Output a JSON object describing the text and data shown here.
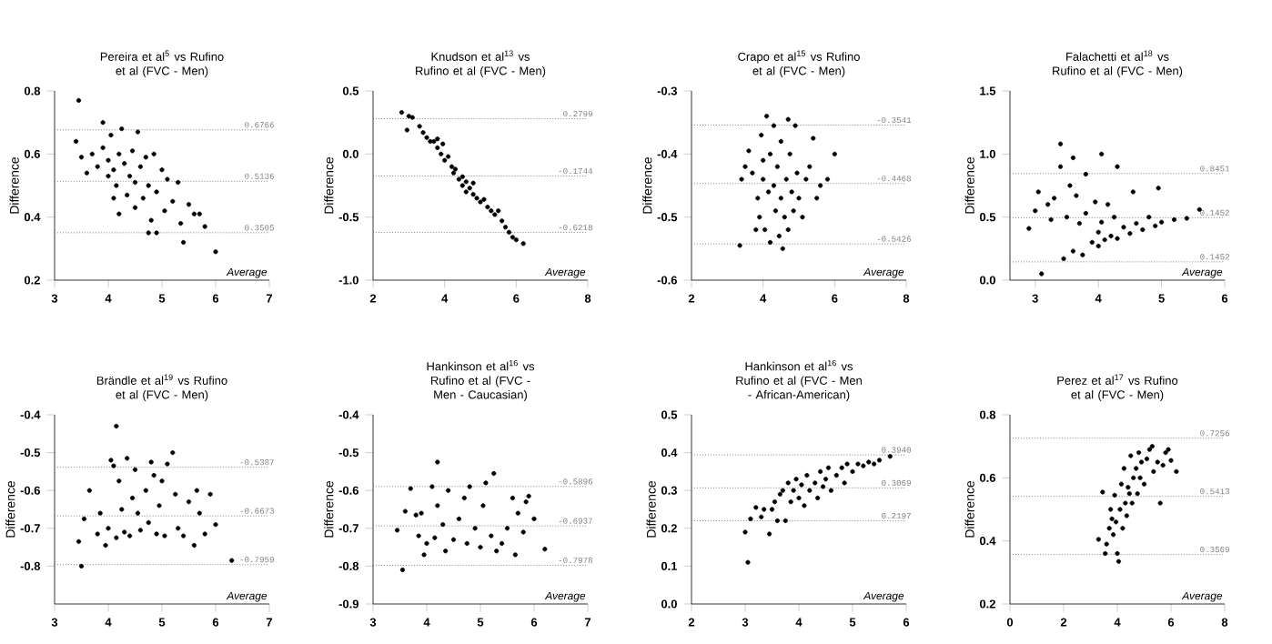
{
  "chart_data": [
    {
      "type": "scatter",
      "title": "Pereira et al$^{5}$ vs Rufino et al (FVC - Men)",
      "xlabel": "Average",
      "ylabel": "Difference",
      "marker": "circle",
      "xlim": [
        3,
        7
      ],
      "xticks": [
        3,
        4,
        5,
        6,
        7
      ],
      "ylim": [
        0.2,
        0.8
      ],
      "yticks": [
        0.2,
        0.4,
        0.6,
        0.8
      ],
      "series": [
        {
          "color": "#000000",
          "x": [
            3.45,
            3.4,
            3.5,
            3.6,
            3.7,
            3.8,
            3.9,
            3.9,
            4.0,
            4.0,
            4.05,
            4.1,
            4.1,
            4.15,
            4.2,
            4.2,
            4.25,
            4.3,
            4.35,
            4.4,
            4.45,
            4.5,
            4.5,
            4.55,
            4.6,
            4.65,
            4.7,
            4.75,
            4.75,
            4.8,
            4.85,
            4.9,
            4.9,
            5.0,
            5.05,
            5.1,
            5.2,
            5.3,
            5.35,
            5.4,
            5.5,
            5.6,
            5.7,
            5.8,
            6.0
          ],
          "values": [
            0.77,
            0.64,
            0.59,
            0.54,
            0.6,
            0.56,
            0.7,
            0.62,
            0.58,
            0.53,
            0.66,
            0.46,
            0.55,
            0.5,
            0.41,
            0.6,
            0.68,
            0.57,
            0.47,
            0.53,
            0.61,
            0.51,
            0.43,
            0.67,
            0.56,
            0.46,
            0.59,
            0.35,
            0.5,
            0.39,
            0.6,
            0.35,
            0.48,
            0.55,
            0.42,
            0.52,
            0.45,
            0.51,
            0.38,
            0.32,
            0.44,
            0.41,
            0.41,
            0.37,
            0.29
          ]
        }
      ],
      "ref_lines": [
        {
          "axis": "y",
          "value": 0.6766,
          "label": "0.6766",
          "color": "#808080",
          "line_style": "dotted"
        },
        {
          "axis": "y",
          "value": 0.5136,
          "label": "0.5136",
          "color": "#808080",
          "line_style": "dotted"
        },
        {
          "axis": "y",
          "value": 0.3505,
          "label": "0.3505",
          "color": "#808080",
          "line_style": "dotted"
        }
      ]
    },
    {
      "type": "scatter",
      "title": "Knudson et al$^{13}$ vs Rufino et al (FVC - Men)",
      "xlabel": "Average",
      "ylabel": "Difference",
      "marker": "circle",
      "xlim": [
        2,
        8
      ],
      "xticks": [
        2,
        4,
        6,
        8
      ],
      "ylim": [
        -1.0,
        0.5
      ],
      "yticks": [
        {
          "value": -1.0,
          "label": "-1.0"
        },
        -0.5,
        {
          "value": 0,
          "label": "0.0"
        },
        0.5
      ],
      "series": [
        {
          "color": "#000000",
          "x": [
            2.8,
            2.95,
            3.0,
            3.1,
            3.3,
            3.4,
            3.5,
            3.6,
            3.7,
            3.8,
            3.8,
            3.9,
            3.95,
            4.0,
            4.1,
            4.2,
            4.25,
            4.3,
            4.4,
            4.5,
            4.5,
            4.6,
            4.6,
            4.7,
            4.8,
            4.8,
            4.9,
            5.0,
            5.1,
            5.2,
            5.3,
            5.4,
            5.5,
            5.6,
            5.7,
            5.8,
            5.9,
            6.0,
            6.2
          ],
          "values": [
            0.33,
            0.19,
            0.3,
            0.29,
            0.22,
            0.17,
            0.13,
            0.1,
            0.1,
            0.05,
            0.12,
            0.0,
            0.08,
            -0.05,
            -0.02,
            -0.1,
            -0.15,
            -0.12,
            -0.2,
            -0.18,
            -0.25,
            -0.22,
            -0.3,
            -0.27,
            -0.32,
            -0.23,
            -0.35,
            -0.38,
            -0.36,
            -0.42,
            -0.45,
            -0.48,
            -0.45,
            -0.53,
            -0.58,
            -0.62,
            -0.66,
            -0.68,
            -0.71
          ]
        }
      ],
      "ref_lines": [
        {
          "axis": "y",
          "value": 0.2799,
          "label": "0.2799",
          "color": "#808080",
          "line_style": "dotted"
        },
        {
          "axis": "y",
          "value": -0.1744,
          "label": "-0.1744",
          "color": "#808080",
          "line_style": "dotted"
        },
        {
          "axis": "y",
          "value": -0.6218,
          "label": "-0.6218",
          "color": "#808080",
          "line_style": "dotted"
        }
      ]
    },
    {
      "type": "scatter",
      "title": "Crapo et al$^{15}$ vs Rufino et al (FVC - Men)",
      "xlabel": "Average",
      "ylabel": "Difference",
      "marker": "circle",
      "xlim": [
        2,
        8
      ],
      "xticks": [
        2,
        4,
        6,
        8
      ],
      "ylim": [
        -0.6,
        -0.3
      ],
      "yticks": [
        -0.6,
        -0.5,
        -0.4,
        -0.3
      ],
      "series": [
        {
          "color": "#000000",
          "x": [
            3.35,
            3.4,
            3.5,
            3.6,
            3.7,
            3.8,
            3.85,
            3.9,
            3.95,
            4.0,
            4.0,
            4.05,
            4.1,
            4.15,
            4.2,
            4.2,
            4.3,
            4.3,
            4.35,
            4.4,
            4.45,
            4.5,
            4.5,
            4.55,
            4.6,
            4.65,
            4.7,
            4.7,
            4.75,
            4.8,
            4.85,
            4.9,
            4.95,
            5.0,
            5.1,
            5.2,
            5.3,
            5.4,
            5.5,
            5.6,
            5.8,
            6.0
          ],
          "values": [
            -0.545,
            -0.44,
            -0.42,
            -0.395,
            -0.43,
            -0.52,
            -0.47,
            -0.5,
            -0.37,
            -0.44,
            -0.41,
            -0.52,
            -0.34,
            -0.46,
            -0.4,
            -0.54,
            -0.355,
            -0.45,
            -0.49,
            -0.42,
            -0.53,
            -0.38,
            -0.47,
            -0.55,
            -0.5,
            -0.44,
            -0.345,
            -0.52,
            -0.4,
            -0.46,
            -0.49,
            -0.355,
            -0.43,
            -0.47,
            -0.5,
            -0.44,
            -0.42,
            -0.375,
            -0.47,
            -0.45,
            -0.44,
            -0.4
          ]
        }
      ],
      "ref_lines": [
        {
          "axis": "y",
          "value": -0.3541,
          "label": "-0.3541",
          "color": "#808080",
          "line_style": "dotted"
        },
        {
          "axis": "y",
          "value": -0.4468,
          "label": "-0.4468",
          "color": "#808080",
          "line_style": "dotted"
        },
        {
          "axis": "y",
          "value": -0.5426,
          "label": "-0.5426",
          "color": "#808080",
          "line_style": "dotted"
        }
      ]
    },
    {
      "type": "scatter",
      "title": "Falachetti et al$^{18}$ vs Rufino et al (FVC - Men)",
      "xlabel": "Average",
      "ylabel": "Difference",
      "marker": "circle",
      "xlim": [
        2.6,
        6
      ],
      "xticks": [
        3,
        4,
        5,
        6
      ],
      "ylim": [
        0,
        1.5
      ],
      "yticks": [
        {
          "value": 0,
          "label": "0.0"
        },
        0.5,
        {
          "value": 1.0,
          "label": "1.0"
        },
        1.5
      ],
      "series": [
        {
          "color": "#000000",
          "x": [
            2.9,
            3.0,
            3.05,
            3.1,
            3.2,
            3.25,
            3.3,
            3.4,
            3.4,
            3.45,
            3.5,
            3.55,
            3.6,
            3.6,
            3.65,
            3.7,
            3.75,
            3.8,
            3.8,
            3.9,
            3.95,
            4.0,
            4.0,
            4.05,
            4.05,
            4.1,
            4.15,
            4.2,
            4.25,
            4.3,
            4.3,
            4.4,
            4.5,
            4.55,
            4.6,
            4.7,
            4.8,
            4.9,
            4.95,
            5.0,
            5.2,
            5.4,
            5.6
          ],
          "values": [
            0.41,
            0.55,
            0.7,
            0.05,
            0.6,
            0.48,
            0.65,
            1.08,
            0.9,
            0.17,
            0.5,
            0.75,
            0.97,
            0.23,
            0.67,
            0.45,
            0.2,
            0.84,
            0.53,
            0.3,
            0.62,
            0.38,
            0.27,
            1.0,
            0.46,
            0.32,
            0.6,
            0.35,
            0.5,
            0.9,
            0.33,
            0.42,
            0.37,
            0.7,
            0.45,
            0.4,
            0.5,
            0.43,
            0.73,
            0.46,
            0.48,
            0.49,
            0.56
          ]
        }
      ],
      "ref_lines": [
        {
          "axis": "y",
          "value": 0.8451,
          "label": "0.8451",
          "color": "#808080",
          "line_style": "dotted"
        },
        {
          "axis": "y",
          "value": 0.495,
          "color": "#808080",
          "line_style": "dotted"
        },
        {
          "axis": "y",
          "value": 0.1452,
          "label": "0.1452",
          "color": "#808080",
          "line_style": "dotted"
        }
      ],
      "annotations": [
        {
          "text": "0.1452",
          "x": 6,
          "y": 0.495
        }
      ]
    },
    {
      "type": "scatter",
      "title": "Brändle et al$^{19}$ vs Rufino et al (FVC - Men)",
      "xlabel": "Average",
      "ylabel": "Difference",
      "marker": "circle",
      "xlim": [
        3,
        7
      ],
      "xticks": [
        3,
        4,
        5,
        6,
        7
      ],
      "ylim": [
        -0.9,
        -0.4
      ],
      "yticks": [
        -0.8,
        -0.7,
        -0.6,
        -0.5,
        -0.4
      ],
      "series": [
        {
          "color": "#000000",
          "x": [
            3.45,
            3.5,
            3.55,
            3.65,
            3.8,
            3.85,
            3.95,
            4.0,
            4.05,
            4.1,
            4.15,
            4.15,
            4.2,
            4.25,
            4.3,
            4.35,
            4.4,
            4.45,
            4.5,
            4.55,
            4.6,
            4.7,
            4.75,
            4.8,
            4.85,
            4.9,
            4.95,
            5.0,
            5.05,
            5.1,
            5.2,
            5.25,
            5.3,
            5.4,
            5.5,
            5.6,
            5.65,
            5.7,
            5.8,
            5.9,
            6.0,
            6.3
          ],
          "values": [
            -0.735,
            -0.8,
            -0.675,
            -0.6,
            -0.715,
            -0.66,
            -0.745,
            -0.7,
            -0.52,
            -0.535,
            -0.43,
            -0.725,
            -0.575,
            -0.65,
            -0.71,
            -0.515,
            -0.72,
            -0.62,
            -0.545,
            -0.66,
            -0.705,
            -0.6,
            -0.685,
            -0.525,
            -0.56,
            -0.715,
            -0.64,
            -0.575,
            -0.72,
            -0.53,
            -0.5,
            -0.61,
            -0.7,
            -0.72,
            -0.63,
            -0.745,
            -0.6,
            -0.66,
            -0.715,
            -0.61,
            -0.69,
            -0.785
          ]
        }
      ],
      "ref_lines": [
        {
          "axis": "y",
          "value": -0.5387,
          "label": "-0.5387",
          "color": "#808080",
          "line_style": "dotted"
        },
        {
          "axis": "y",
          "value": -0.6673,
          "label": "-0.6673",
          "color": "#808080",
          "line_style": "dotted"
        },
        {
          "axis": "y",
          "value": -0.7959,
          "label": "-0.7959",
          "color": "#808080",
          "line_style": "dotted"
        }
      ]
    },
    {
      "type": "scatter",
      "title": "Hankinson et al$^{16}$ vs Rufino et al (FVC - Men - Caucasian)",
      "xlabel": "Average",
      "ylabel": "Difference",
      "marker": "circle",
      "xlim": [
        3,
        7
      ],
      "xticks": [
        3,
        4,
        5,
        6,
        7
      ],
      "ylim": [
        -0.9,
        -0.4
      ],
      "yticks": [
        -0.9,
        -0.8,
        -0.7,
        -0.6,
        -0.5,
        -0.4
      ],
      "series": [
        {
          "color": "#000000",
          "x": [
            3.45,
            3.55,
            3.6,
            3.7,
            3.8,
            3.85,
            3.9,
            3.95,
            4.0,
            4.1,
            4.15,
            4.2,
            4.2,
            4.3,
            4.35,
            4.4,
            4.5,
            4.6,
            4.7,
            4.75,
            4.8,
            4.9,
            5.0,
            5.05,
            5.1,
            5.2,
            5.25,
            5.3,
            5.4,
            5.5,
            5.6,
            5.65,
            5.7,
            5.8,
            5.85,
            5.9,
            6.0,
            6.2
          ],
          "values": [
            -0.705,
            -0.81,
            -0.655,
            -0.595,
            -0.665,
            -0.72,
            -0.66,
            -0.77,
            -0.74,
            -0.59,
            -0.725,
            -0.525,
            -0.64,
            -0.69,
            -0.76,
            -0.6,
            -0.73,
            -0.675,
            -0.62,
            -0.74,
            -0.59,
            -0.7,
            -0.75,
            -0.64,
            -0.58,
            -0.72,
            -0.555,
            -0.76,
            -0.74,
            -0.7,
            -0.62,
            -0.77,
            -0.66,
            -0.71,
            -0.63,
            -0.615,
            -0.675,
            -0.755
          ]
        }
      ],
      "ref_lines": [
        {
          "axis": "y",
          "value": -0.5896,
          "label": "-0.5896",
          "color": "#808080",
          "line_style": "dotted"
        },
        {
          "axis": "y",
          "value": -0.6937,
          "label": "-0.6937",
          "color": "#808080",
          "line_style": "dotted"
        },
        {
          "axis": "y",
          "value": -0.7978,
          "label": "-0.7978",
          "color": "#808080",
          "line_style": "dotted"
        }
      ]
    },
    {
      "type": "scatter",
      "title": "Hankinson et al$^{16}$ vs Rufino et al (FVC - Men - African-American)",
      "xlabel": "Average",
      "ylabel": "Difference",
      "marker": "circle",
      "xlim": [
        2,
        6
      ],
      "xticks": [
        2,
        3,
        4,
        5,
        6
      ],
      "ylim": [
        0,
        0.5
      ],
      "yticks": [
        {
          "value": 0,
          "label": "0.0"
        },
        0.1,
        0.2,
        0.3,
        0.4,
        0.5
      ],
      "series": [
        {
          "color": "#000000",
          "x": [
            3.0,
            3.05,
            3.1,
            3.2,
            3.3,
            3.35,
            3.45,
            3.5,
            3.55,
            3.6,
            3.65,
            3.7,
            3.75,
            3.8,
            3.85,
            3.9,
            3.95,
            4.0,
            4.05,
            4.1,
            4.15,
            4.2,
            4.3,
            4.35,
            4.4,
            4.45,
            4.5,
            4.55,
            4.6,
            4.7,
            4.8,
            4.85,
            4.9,
            5.0,
            5.1,
            5.2,
            5.3,
            5.4,
            5.5,
            5.7
          ],
          "values": [
            0.19,
            0.11,
            0.225,
            0.255,
            0.23,
            0.25,
            0.185,
            0.25,
            0.27,
            0.22,
            0.29,
            0.3,
            0.22,
            0.32,
            0.27,
            0.3,
            0.33,
            0.28,
            0.315,
            0.26,
            0.34,
            0.3,
            0.32,
            0.28,
            0.35,
            0.31,
            0.33,
            0.36,
            0.3,
            0.34,
            0.36,
            0.32,
            0.37,
            0.35,
            0.37,
            0.365,
            0.375,
            0.37,
            0.38,
            0.39
          ]
        }
      ],
      "ref_lines": [
        {
          "axis": "y",
          "value": 0.394,
          "label": "0.3940",
          "color": "#808080",
          "line_style": "dotted"
        },
        {
          "axis": "y",
          "value": 0.3069,
          "label": "0.3069",
          "color": "#808080",
          "line_style": "dotted"
        },
        {
          "axis": "y",
          "value": 0.2197,
          "label": "0.2197",
          "color": "#808080",
          "line_style": "dotted"
        }
      ]
    },
    {
      "type": "scatter",
      "title": "Perez et al$^{17}$ vs Rufino et al (FVC - Men)",
      "xlabel": "Average",
      "ylabel": "Difference",
      "marker": "circle",
      "xlim": [
        0,
        8
      ],
      "xticks": [
        0,
        2,
        4,
        6,
        8
      ],
      "ylim": [
        0.2,
        0.8
      ],
      "yticks": [
        0.2,
        0.4,
        0.6,
        0.8
      ],
      "series": [
        {
          "color": "#000000",
          "x": [
            3.3,
            3.45,
            3.55,
            3.6,
            3.7,
            3.75,
            3.8,
            3.85,
            3.9,
            3.95,
            4.0,
            4.05,
            4.1,
            4.15,
            4.2,
            4.25,
            4.3,
            4.35,
            4.4,
            4.45,
            4.5,
            4.55,
            4.6,
            4.7,
            4.75,
            4.8,
            4.85,
            4.9,
            5.0,
            5.1,
            5.2,
            5.3,
            5.35,
            5.5,
            5.6,
            5.7,
            5.8,
            5.9,
            6.0,
            6.2
          ],
          "values": [
            0.405,
            0.555,
            0.36,
            0.39,
            0.44,
            0.5,
            0.47,
            0.42,
            0.545,
            0.46,
            0.36,
            0.335,
            0.5,
            0.58,
            0.44,
            0.63,
            0.52,
            0.48,
            0.57,
            0.55,
            0.67,
            0.52,
            0.6,
            0.63,
            0.55,
            0.68,
            0.6,
            0.65,
            0.58,
            0.66,
            0.69,
            0.7,
            0.62,
            0.65,
            0.52,
            0.64,
            0.68,
            0.69,
            0.655,
            0.62
          ]
        }
      ],
      "ref_lines": [
        {
          "axis": "y",
          "value": 0.7256,
          "label": "0.7256",
          "color": "#808080",
          "line_style": "dotted"
        },
        {
          "axis": "y",
          "value": 0.5413,
          "label": "0.5413",
          "color": "#808080",
          "line_style": "dotted"
        },
        {
          "axis": "y",
          "value": 0.3569,
          "label": "0.3569",
          "color": "#808080",
          "line_style": "dotted"
        }
      ]
    }
  ]
}
